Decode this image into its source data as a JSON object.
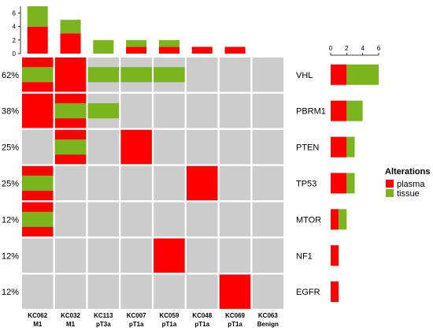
{
  "chart_data": {
    "type": "heatmap",
    "samples": [
      {
        "id": "KC062",
        "stage": "M1"
      },
      {
        "id": "KC032",
        "stage": "M1"
      },
      {
        "id": "KC113",
        "stage": "pT3a"
      },
      {
        "id": "KC007",
        "stage": "pT1a"
      },
      {
        "id": "KC059",
        "stage": "pT1a"
      },
      {
        "id": "KC048",
        "stage": "pT1a"
      },
      {
        "id": "KC069",
        "stage": "pT1a"
      },
      {
        "id": "KC063",
        "stage": "Benign"
      }
    ],
    "genes": [
      "VHL",
      "PBRM1",
      "PTEN",
      "TP53",
      "MTOR",
      "NF1",
      "EGFR"
    ],
    "row_percentages": [
      "62%",
      "38%",
      "25%",
      "25%",
      "12%",
      "12%",
      "12%"
    ],
    "cells": [
      [
        "both",
        "plasma",
        "tissue",
        "tissue",
        "tissue",
        "none",
        "none",
        "none"
      ],
      [
        "plasma",
        "both",
        "tissue",
        "none",
        "none",
        "none",
        "none",
        "none"
      ],
      [
        "none",
        "both",
        "none",
        "plasma",
        "none",
        "none",
        "none",
        "none"
      ],
      [
        "both",
        "none",
        "none",
        "none",
        "none",
        "plasma",
        "none",
        "none"
      ],
      [
        "both",
        "none",
        "none",
        "none",
        "none",
        "none",
        "none",
        "none"
      ],
      [
        "none",
        "none",
        "none",
        "none",
        "plasma",
        "none",
        "none",
        "none"
      ],
      [
        "none",
        "none",
        "none",
        "none",
        "none",
        "none",
        "plasma",
        "none"
      ]
    ],
    "top_bars": {
      "plasma": [
        4,
        3,
        0,
        1,
        1,
        1,
        1,
        0
      ],
      "tissue": [
        3,
        2,
        2,
        1,
        1,
        0,
        0,
        0
      ],
      "ylim": [
        0,
        7
      ],
      "ticks": [
        "0",
        "2",
        "4",
        "6"
      ]
    },
    "side_bars": {
      "plasma": [
        2,
        2,
        2,
        2,
        1,
        1,
        1
      ],
      "tissue": [
        4,
        2,
        1,
        1,
        1,
        0,
        0
      ],
      "xlim": [
        0,
        6
      ],
      "ticks": [
        "0",
        "2",
        "4",
        "6"
      ]
    },
    "legend": {
      "title": "Alterations",
      "items": [
        {
          "label": "plasma",
          "color": "#ff0000"
        },
        {
          "label": "tissue",
          "color": "#7ab51d"
        }
      ],
      "placement": "right"
    },
    "colors": {
      "plasma": "#ff0000",
      "tissue": "#7ab51d",
      "background": "#cccccc"
    },
    "grid": false
  }
}
